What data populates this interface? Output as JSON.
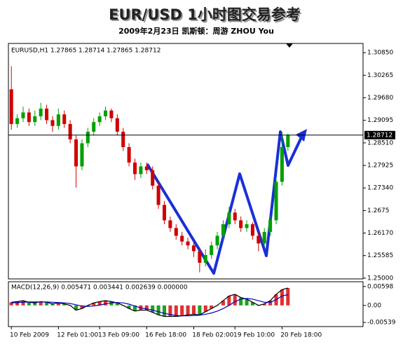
{
  "chart_data": [
    {
      "type": "candlestick",
      "title": "EUR/USD 1小时图交易参考",
      "subtitle": "2009年2月23日  凯斯顿：周游 ZHOU You",
      "info": "EURUSD,H1  1.27865  1.28714  1.27865  1.28712",
      "up_color": "#00a000",
      "down_color": "#d00000",
      "categories": [
        "10 Feb 2009",
        null,
        null,
        null,
        null,
        null,
        null,
        null,
        "12 Feb 01:00",
        null,
        null,
        null,
        null,
        null,
        null,
        "13 Feb 09:00",
        null,
        null,
        null,
        null,
        null,
        null,
        null,
        "16 Feb 18:00",
        null,
        null,
        null,
        null,
        null,
        null,
        null,
        "18 Feb 02:00",
        null,
        null,
        null,
        null,
        null,
        null,
        "19 Feb 10:00",
        null,
        null,
        null,
        null,
        null,
        null,
        null,
        "20 Feb 18:00",
        null
      ],
      "open": [
        1.299,
        1.29,
        1.2915,
        1.293,
        1.2905,
        1.292,
        1.294,
        1.291,
        1.2895,
        1.2925,
        1.29,
        1.286,
        1.279,
        1.285,
        1.288,
        1.2905,
        1.292,
        1.2935,
        1.2915,
        1.288,
        1.284,
        1.28,
        1.277,
        1.279,
        1.278,
        1.274,
        1.269,
        1.265,
        1.263,
        1.261,
        1.2595,
        1.2585,
        1.257,
        1.254,
        1.256,
        1.2585,
        1.261,
        1.264,
        1.267,
        1.265,
        1.263,
        1.264,
        1.261,
        1.259,
        1.262,
        1.265,
        1.275,
        1.284
      ],
      "high": [
        1.305,
        1.2925,
        1.2945,
        1.294,
        1.2935,
        1.2955,
        1.295,
        1.292,
        1.294,
        1.2935,
        1.291,
        1.287,
        1.286,
        1.289,
        1.2915,
        1.293,
        1.2945,
        1.294,
        1.2925,
        1.289,
        1.285,
        1.281,
        1.28,
        1.28,
        1.279,
        1.275,
        1.27,
        1.266,
        1.264,
        1.262,
        1.2605,
        1.2595,
        1.258,
        1.2575,
        1.2595,
        1.262,
        1.265,
        1.2685,
        1.268,
        1.266,
        1.265,
        1.2645,
        1.262,
        1.263,
        1.266,
        1.276,
        1.288,
        1.2875
      ],
      "low": [
        1.2885,
        1.289,
        1.2905,
        1.2895,
        1.2895,
        1.291,
        1.29,
        1.288,
        1.2885,
        1.289,
        1.285,
        1.2735,
        1.278,
        1.284,
        1.287,
        1.2895,
        1.291,
        1.2905,
        1.287,
        1.283,
        1.279,
        1.2755,
        1.276,
        1.277,
        1.273,
        1.268,
        1.264,
        1.262,
        1.26,
        1.2585,
        1.2575,
        1.2555,
        1.2515,
        1.253,
        1.255,
        1.2575,
        1.26,
        1.263,
        1.264,
        1.262,
        1.262,
        1.26,
        1.257,
        1.2585,
        1.261,
        1.264,
        1.274,
        1.283
      ],
      "close": [
        1.29,
        1.2915,
        1.293,
        1.2905,
        1.292,
        1.294,
        1.291,
        1.2895,
        1.2925,
        1.29,
        1.286,
        1.279,
        1.285,
        1.288,
        1.2905,
        1.292,
        1.2935,
        1.2915,
        1.288,
        1.284,
        1.28,
        1.277,
        1.279,
        1.278,
        1.274,
        1.269,
        1.265,
        1.263,
        1.261,
        1.2595,
        1.2585,
        1.257,
        1.254,
        1.256,
        1.2585,
        1.261,
        1.264,
        1.267,
        1.265,
        1.263,
        1.264,
        1.261,
        1.259,
        1.262,
        1.265,
        1.275,
        1.284,
        1.2871
      ],
      "last_price": 1.28712,
      "ylim": [
        1.2498,
        1.3109
      ],
      "yticks": [
        {
          "value": 1.3085,
          "label": "1.30850"
        },
        1.30265,
        {
          "value": 1.2968,
          "label": "1.29680"
        },
        1.29095,
        {
          "value": 1.2851,
          "label": "1.28510"
        },
        1.27925,
        {
          "value": 1.2734,
          "label": "1.27340"
        },
        {
          "value": 1.26755,
          "label": "1.2675"
        },
        {
          "value": 1.2617,
          "label": "1.26170"
        },
        1.25585,
        {
          "value": 1.25,
          "label": "1.25000"
        }
      ]
    },
    {
      "type": "macd",
      "title": "MACD(12,26,9)  0.005471  0.003441  0.002639  0.000000",
      "values": [
        0.001,
        0.0012,
        0.0015,
        0.001,
        0.0008,
        0.0012,
        0.001,
        0.0005,
        0.0008,
        0.0005,
        0.0,
        -0.0015,
        -0.001,
        0.0,
        0.0008,
        0.0012,
        0.0015,
        0.0012,
        0.0008,
        0.0,
        -0.001,
        -0.0018,
        -0.0015,
        -0.0015,
        -0.0022,
        -0.003,
        -0.0035,
        -0.0035,
        -0.0035,
        -0.0033,
        -0.003,
        -0.0028,
        -0.003,
        -0.002,
        -0.001,
        0.0,
        0.0015,
        0.003,
        0.0035,
        0.0025,
        0.002,
        0.001,
        0.0,
        0.0005,
        0.0015,
        0.0035,
        0.005,
        0.0055
      ],
      "signal": [
        0.0008,
        0.0009,
        0.001,
        0.0011,
        0.0011,
        0.0011,
        0.0011,
        0.001,
        0.0009,
        0.0008,
        0.0006,
        0.0002,
        -0.0002,
        -0.0003,
        -0.0002,
        0.0001,
        0.0005,
        0.0008,
        0.0009,
        0.0008,
        0.0004,
        -0.0002,
        -0.0008,
        -0.0011,
        -0.0015,
        -0.002,
        -0.0025,
        -0.0029,
        -0.0032,
        -0.0033,
        -0.0033,
        -0.0032,
        -0.0031,
        -0.0028,
        -0.0024,
        -0.0018,
        -0.001,
        0.0,
        0.0012,
        0.002,
        0.0022,
        0.002,
        0.0015,
        0.001,
        0.001,
        0.0018,
        0.003,
        0.0034
      ],
      "rise_color": "#e03030",
      "fall_color": "#20a020",
      "signal_color": "#0000c0",
      "ylim": [
        -0.0067,
        0.0075
      ],
      "yticks": [
        0.00598,
        {
          "value": 0,
          "label": "0.00"
        },
        -0.00539
      ]
    }
  ]
}
